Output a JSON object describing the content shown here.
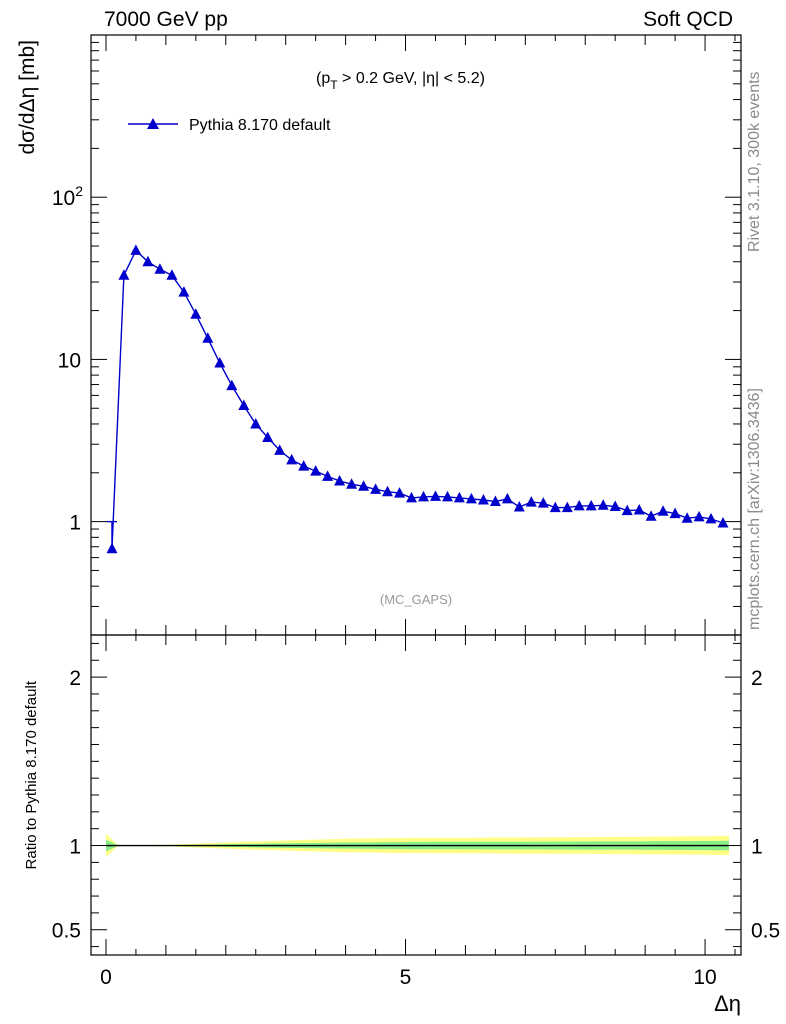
{
  "header": {
    "left": "7000 GeV pp",
    "right": "Soft QCD"
  },
  "side_labels": {
    "rivet": "Rivet 3.1.10,  300k events",
    "mcplots": "mcplots.cern.ch [arXiv:1306.3436]"
  },
  "chart_data": [
    {
      "type": "line",
      "role": "main",
      "annotation_parts": [
        "(p",
        "T",
        " > 0.2 GeV, |η| < 5.2)"
      ],
      "watermark": "(MC_GAPS)",
      "ylabel": "dσ/dΔη [mb]",
      "yscale": "log",
      "ylim": [
        0.2,
        1000
      ],
      "xlim": [
        -0.25,
        10.6
      ],
      "y_ticks": [
        {
          "value": 100,
          "base": "10",
          "exp": "2"
        },
        {
          "value": 10,
          "label": "10"
        },
        {
          "value": 1,
          "label": "1"
        }
      ],
      "series": [
        {
          "name": "Pythia 8.170 default",
          "color": "#0000cc",
          "marker": "triangle",
          "x": [
            0.1,
            0.3,
            0.5,
            0.7,
            0.9,
            1.1,
            1.3,
            1.5,
            1.7,
            1.9,
            2.1,
            2.3,
            2.5,
            2.7,
            2.9,
            3.1,
            3.3,
            3.5,
            3.7,
            3.9,
            4.1,
            4.3,
            4.5,
            4.7,
            4.9,
            5.1,
            5.3,
            5.5,
            5.7,
            5.9,
            6.1,
            6.3,
            6.5,
            6.7,
            6.9,
            7.1,
            7.3,
            7.5,
            7.7,
            7.9,
            8.1,
            8.3,
            8.5,
            8.7,
            8.9,
            9.1,
            9.3,
            9.5,
            9.7,
            9.9,
            10.1,
            10.3
          ],
          "values": [
            0.68,
            33,
            47,
            40,
            36,
            33,
            26,
            19,
            13.5,
            9.5,
            6.9,
            5.2,
            4.0,
            3.3,
            2.75,
            2.4,
            2.2,
            2.05,
            1.9,
            1.78,
            1.7,
            1.65,
            1.58,
            1.53,
            1.5,
            1.4,
            1.42,
            1.43,
            1.42,
            1.4,
            1.38,
            1.36,
            1.33,
            1.38,
            1.23,
            1.32,
            1.3,
            1.22,
            1.22,
            1.25,
            1.25,
            1.26,
            1.24,
            1.17,
            1.18,
            1.08,
            1.16,
            1.12,
            1.05,
            1.07,
            1.04,
            0.98
          ]
        }
      ]
    },
    {
      "type": "area",
      "role": "ratio",
      "ylabel": "Ratio to Pythia 8.170 default",
      "xlabel": "Δη",
      "ylim": [
        0.35,
        2.25
      ],
      "x_ticks": [
        {
          "value": 0,
          "label": "0"
        },
        {
          "value": 5,
          "label": "5"
        },
        {
          "value": 10,
          "label": "10"
        }
      ],
      "y_ticks": [
        {
          "value": 2,
          "label": "2"
        },
        {
          "value": 1,
          "label": "1"
        },
        {
          "value": 0.5,
          "label": "0.5"
        }
      ],
      "reference_line": 1,
      "band_colors": {
        "outer": "#ffff88",
        "inner": "#88ee88"
      },
      "bands": {
        "x": [
          0.0,
          0.2,
          1.0,
          2.0,
          3.0,
          4.0,
          5.0,
          6.0,
          7.0,
          8.0,
          9.0,
          10.0,
          10.4
        ],
        "outer": [
          0.07,
          0.002,
          0.004,
          0.018,
          0.03,
          0.04,
          0.045,
          0.046,
          0.048,
          0.05,
          0.052,
          0.055,
          0.058
        ],
        "inner": [
          0.035,
          0.001,
          0.002,
          0.008,
          0.014,
          0.018,
          0.021,
          0.022,
          0.023,
          0.024,
          0.025,
          0.027,
          0.028
        ]
      }
    }
  ]
}
